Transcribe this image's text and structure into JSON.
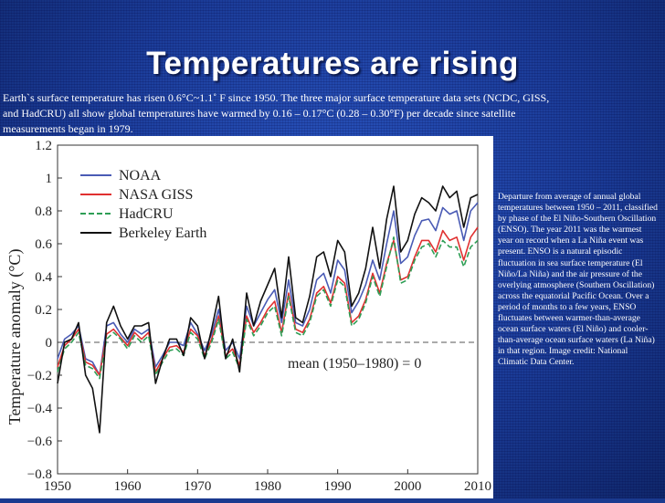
{
  "slide": {
    "title": "Temperatures are rising",
    "intro": "Earth`s surface temperature has risen 0.6°C~1.1˚ F since 1950. The three major surface temperature data sets (NCDC, GISS, and HadCRU) all show global temperatures have warmed by 0.16 – 0.17°C (0.28 – 0.30°F) per decade since satellite measurements began in 1979.",
    "caption": "Departure from average of annual global temperatures between 1950 – 2011, classified by phase of the El Niño-Southern Oscillation (ENSO). The year 2011 was the warmest year on record when a La Niña event was present. ENSO is a natural episodic fluctuation in sea surface temperature (El Niño/La Niña) and the air pressure of the overlying atmosphere (Southern Oscillation) across the equatorial Pacific Ocean. Over a period of months to a few years, ENSO fluctuates between warmer-than-average ocean surface waters (El Niño) and cooler-than-average ocean surface waters (La Niña) in that region. Image credit: National Climatic Data Center."
  },
  "chart_data": {
    "type": "line",
    "ylabel": "Temperature anomaly (°C)",
    "xlabel": "",
    "xlim": [
      1950,
      2010
    ],
    "ylim": [
      -0.8,
      1.2
    ],
    "xticks": [
      "1950",
      "1960",
      "1970",
      "1980",
      "1990",
      "2000",
      "2010"
    ],
    "yticks": [
      "−0.8",
      "−0.6",
      "−0.4",
      "−0.2",
      "0",
      "0.2",
      "0.4",
      "0.6",
      "0.8",
      "1",
      "1.2"
    ],
    "baseline_label": "mean (1950–1980) = 0",
    "legend_position": "top-left",
    "x": [
      1950,
      1951,
      1952,
      1953,
      1954,
      1955,
      1956,
      1957,
      1958,
      1959,
      1960,
      1961,
      1962,
      1963,
      1964,
      1965,
      1966,
      1967,
      1968,
      1969,
      1970,
      1971,
      1972,
      1973,
      1974,
      1975,
      1976,
      1977,
      1978,
      1979,
      1980,
      1981,
      1982,
      1983,
      1984,
      1985,
      1986,
      1987,
      1988,
      1989,
      1990,
      1991,
      1992,
      1993,
      1994,
      1995,
      1996,
      1997,
      1998,
      1999,
      2000,
      2001,
      2002,
      2003,
      2004,
      2005,
      2006,
      2007,
      2008,
      2009,
      2010
    ],
    "series": [
      {
        "name": "NOAA",
        "color": "#4a5bb5",
        "dash": "solid",
        "values": [
          -0.1,
          0.02,
          0.05,
          0.1,
          -0.1,
          -0.12,
          -0.2,
          0.1,
          0.12,
          0.05,
          0.0,
          0.08,
          0.05,
          0.08,
          -0.15,
          -0.08,
          0.0,
          0.0,
          -0.02,
          0.12,
          0.05,
          -0.05,
          0.05,
          0.2,
          -0.05,
          0.0,
          -0.1,
          0.22,
          0.1,
          0.18,
          0.26,
          0.32,
          0.12,
          0.38,
          0.12,
          0.1,
          0.2,
          0.38,
          0.42,
          0.3,
          0.5,
          0.44,
          0.18,
          0.25,
          0.35,
          0.5,
          0.38,
          0.6,
          0.8,
          0.48,
          0.52,
          0.65,
          0.74,
          0.75,
          0.68,
          0.82,
          0.78,
          0.8,
          0.62,
          0.8,
          0.85
        ]
      },
      {
        "name": "NASA GISS",
        "color": "#e03030",
        "dash": "solid",
        "values": [
          -0.15,
          -0.02,
          0.02,
          0.08,
          -0.12,
          -0.14,
          -0.2,
          0.05,
          0.08,
          0.03,
          -0.02,
          0.06,
          0.02,
          0.06,
          -0.18,
          -0.1,
          -0.03,
          -0.02,
          -0.06,
          0.08,
          0.04,
          -0.08,
          0.02,
          0.16,
          -0.08,
          -0.04,
          -0.14,
          0.16,
          0.06,
          0.12,
          0.2,
          0.25,
          0.06,
          0.3,
          0.08,
          0.06,
          0.14,
          0.3,
          0.34,
          0.24,
          0.4,
          0.36,
          0.12,
          0.16,
          0.26,
          0.42,
          0.3,
          0.48,
          0.62,
          0.38,
          0.4,
          0.52,
          0.62,
          0.62,
          0.55,
          0.68,
          0.62,
          0.64,
          0.5,
          0.64,
          0.7
        ]
      },
      {
        "name": "HadCRU",
        "color": "#2e9e55",
        "dash": "dashed",
        "values": [
          -0.18,
          -0.04,
          0.0,
          0.06,
          -0.14,
          -0.16,
          -0.22,
          0.02,
          0.06,
          0.02,
          -0.04,
          0.04,
          0.0,
          0.04,
          -0.2,
          -0.12,
          -0.05,
          -0.04,
          -0.08,
          0.06,
          0.02,
          -0.1,
          0.0,
          0.14,
          -0.1,
          -0.06,
          -0.16,
          0.14,
          0.04,
          0.1,
          0.18,
          0.22,
          0.04,
          0.28,
          0.06,
          0.04,
          0.12,
          0.28,
          0.32,
          0.22,
          0.38,
          0.34,
          0.1,
          0.14,
          0.24,
          0.4,
          0.28,
          0.46,
          0.64,
          0.36,
          0.38,
          0.5,
          0.58,
          0.6,
          0.52,
          0.62,
          0.58,
          0.58,
          0.46,
          0.58,
          0.62
        ]
      },
      {
        "name": "Berkeley Earth",
        "color": "#111111",
        "dash": "solid",
        "values": [
          -0.25,
          0.0,
          0.02,
          0.12,
          -0.2,
          -0.28,
          -0.55,
          0.12,
          0.22,
          0.1,
          0.02,
          0.1,
          0.1,
          0.12,
          -0.25,
          -0.1,
          0.02,
          0.02,
          -0.08,
          0.15,
          0.1,
          -0.1,
          0.08,
          0.28,
          -0.1,
          0.02,
          -0.18,
          0.3,
          0.1,
          0.25,
          0.35,
          0.45,
          0.15,
          0.52,
          0.15,
          0.12,
          0.28,
          0.52,
          0.55,
          0.4,
          0.62,
          0.55,
          0.22,
          0.3,
          0.45,
          0.7,
          0.45,
          0.75,
          0.95,
          0.55,
          0.62,
          0.78,
          0.88,
          0.85,
          0.8,
          0.95,
          0.88,
          0.92,
          0.7,
          0.88,
          0.9
        ]
      }
    ]
  }
}
